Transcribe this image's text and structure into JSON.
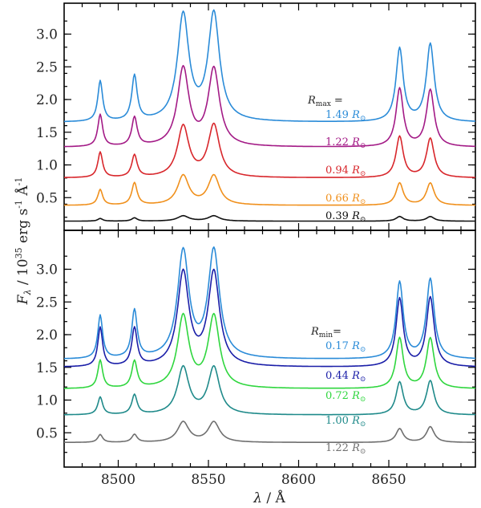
{
  "chart_data": [
    {
      "type": "line",
      "panel": "top",
      "xlim": [
        8470,
        8698
      ],
      "ylim": [
        0.0,
        3.45
      ],
      "xticks": [
        8500,
        8550,
        8600,
        8650
      ],
      "yticks": [
        "0.5",
        "1.0",
        "1.5",
        "2.0",
        "2.5",
        "3.0"
      ],
      "legend_title": "R",
      "legend_title_sub": "max",
      "legend_title_suffix": " =",
      "series": [
        {
          "name": "1.49 R⊙",
          "value": "1.49",
          "unit": "R",
          "color": "#2a8bd8",
          "baseline": 1.65,
          "peaks": [
            0.62,
            0.69,
            1.62,
            1.64,
            1.12,
            1.19
          ]
        },
        {
          "name": "1.22 R⊙",
          "value": "1.22",
          "unit": "R",
          "color": "#a31a86",
          "baseline": 1.27,
          "peaks": [
            0.49,
            0.44,
            1.19,
            1.18,
            0.89,
            0.87
          ]
        },
        {
          "name": "0.94 R⊙",
          "value": "0.94",
          "unit": "R",
          "color": "#d8262b",
          "baseline": 0.8,
          "peaks": [
            0.39,
            0.34,
            0.78,
            0.8,
            0.63,
            0.6
          ]
        },
        {
          "name": "0.66 R⊙",
          "value": "0.66",
          "unit": "R",
          "color": "#f0901c",
          "baseline": 0.38,
          "peaks": [
            0.24,
            0.34,
            0.45,
            0.45,
            0.34,
            0.34
          ]
        },
        {
          "name": "0.39 R⊙",
          "value": "0.39",
          "unit": "R",
          "color": "#111111",
          "baseline": 0.14,
          "peaks": [
            0.04,
            0.05,
            0.08,
            0.08,
            0.07,
            0.07
          ]
        }
      ]
    },
    {
      "type": "line",
      "panel": "bottom",
      "xlim": [
        8470,
        8698
      ],
      "ylim": [
        0.0,
        3.45
      ],
      "xticks": [
        8500,
        8550,
        8600,
        8650
      ],
      "yticks": [
        "0.5",
        "1.0",
        "1.5",
        "2.0",
        "2.5",
        "3.0"
      ],
      "legend_title": "R",
      "legend_title_sub": "min",
      "legend_title_suffix": "=",
      "series": [
        {
          "name": "0.17 R⊙",
          "value": "0.17",
          "unit": "R",
          "color": "#2a8bd8",
          "baseline": 1.62,
          "peaks": [
            0.66,
            0.73,
            1.63,
            1.64,
            1.17,
            1.22
          ]
        },
        {
          "name": "0.44 R⊙",
          "value": "0.44",
          "unit": "R",
          "color": "#1a1ea8",
          "baseline": 1.5,
          "peaks": [
            0.6,
            0.58,
            1.43,
            1.43,
            1.04,
            1.06
          ]
        },
        {
          "name": "0.72 R⊙",
          "value": "0.72",
          "unit": "R",
          "color": "#2fd63e",
          "baseline": 1.17,
          "peaks": [
            0.43,
            0.41,
            1.1,
            1.1,
            0.77,
            0.77
          ]
        },
        {
          "name": "1.00 R⊙",
          "value": "1.00",
          "unit": "R",
          "color": "#1f8a8a",
          "baseline": 0.77,
          "peaks": [
            0.27,
            0.3,
            0.72,
            0.72,
            0.5,
            0.52
          ]
        },
        {
          "name": "1.22 R⊙",
          "value": "1.22",
          "unit": "R",
          "color": "#6f6f6f",
          "baseline": 0.35,
          "peaks": [
            0.12,
            0.12,
            0.31,
            0.31,
            0.21,
            0.24
          ]
        }
      ]
    }
  ],
  "axes": {
    "xlabel_var": "λ",
    "xlabel_unit": " / Å",
    "ylabel_var": "F",
    "ylabel_sub": "λ",
    "ylabel_unit_base": " / 10",
    "ylabel_unit_exp": "35",
    "ylabel_unit_tail": " erg s",
    "ylabel_unit_tail_exp": "-1",
    "ylabel_unit_A": " Å",
    "ylabel_unit_A_exp": "-1"
  },
  "solar_symbol": "⊙"
}
